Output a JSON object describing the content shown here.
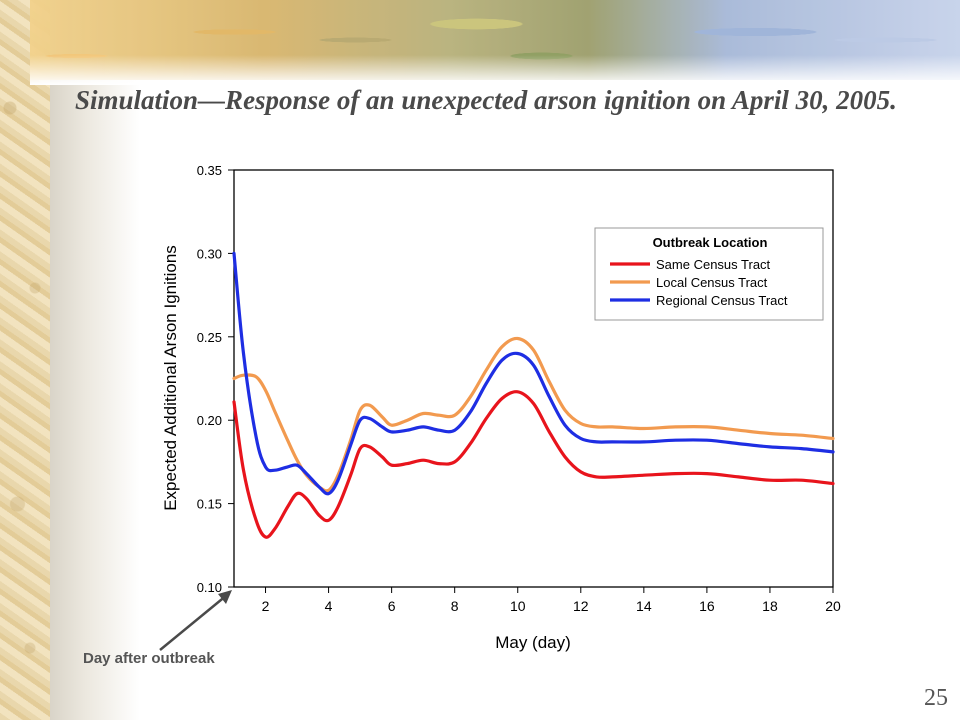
{
  "slide": {
    "title": "Simulation—Response of an unexpected arson ignition on April 30, 2005.",
    "annotation": "Day after outbreak",
    "page_number": "25"
  },
  "chart_data": {
    "type": "line",
    "title": "",
    "xlabel": "May (day)",
    "ylabel": "Expected Additional Arson Ignitions",
    "xlim": [
      1,
      20
    ],
    "ylim": [
      0.1,
      0.35
    ],
    "xticks": [
      2,
      4,
      6,
      8,
      10,
      12,
      14,
      16,
      18,
      20
    ],
    "yticks": [
      0.1,
      0.15,
      0.2,
      0.25,
      0.3,
      0.35
    ],
    "ytick_labels": [
      "0.10",
      "0.15",
      "0.20",
      "0.25",
      "0.30",
      "0.35"
    ],
    "grid": false,
    "legend": {
      "title": "Outbreak Location",
      "position": "top-right"
    },
    "series": [
      {
        "name": "Same Census Tract",
        "color": "#e8141c",
        "x": [
          1,
          1.3,
          1.7,
          2,
          2.3,
          2.7,
          3,
          3.3,
          3.7,
          4,
          4.3,
          4.7,
          5,
          5.3,
          5.7,
          6,
          6.5,
          7,
          7.5,
          8,
          8.5,
          9,
          9.5,
          10,
          10.5,
          11,
          11.5,
          12,
          12.5,
          13,
          14,
          15,
          16,
          17,
          18,
          19,
          20
        ],
        "y": [
          0.211,
          0.17,
          0.14,
          0.13,
          0.135,
          0.148,
          0.156,
          0.153,
          0.143,
          0.14,
          0.148,
          0.167,
          0.183,
          0.184,
          0.178,
          0.173,
          0.174,
          0.176,
          0.174,
          0.175,
          0.186,
          0.201,
          0.213,
          0.217,
          0.21,
          0.193,
          0.178,
          0.169,
          0.166,
          0.166,
          0.167,
          0.168,
          0.168,
          0.166,
          0.164,
          0.164,
          0.162
        ]
      },
      {
        "name": "Local Census Tract",
        "color": "#f29a4f",
        "x": [
          1,
          1.3,
          1.7,
          2,
          2.3,
          2.7,
          3,
          3.3,
          3.7,
          4,
          4.3,
          4.7,
          5,
          5.3,
          5.7,
          6,
          6.5,
          7,
          7.5,
          8,
          8.5,
          9,
          9.5,
          10,
          10.5,
          11,
          11.5,
          12,
          12.5,
          13,
          14,
          15,
          16,
          17,
          18,
          19,
          20
        ],
        "y": [
          0.225,
          0.227,
          0.226,
          0.218,
          0.205,
          0.188,
          0.176,
          0.167,
          0.16,
          0.158,
          0.167,
          0.188,
          0.206,
          0.209,
          0.202,
          0.197,
          0.2,
          0.204,
          0.203,
          0.203,
          0.214,
          0.23,
          0.244,
          0.249,
          0.242,
          0.223,
          0.206,
          0.198,
          0.196,
          0.196,
          0.195,
          0.196,
          0.196,
          0.194,
          0.192,
          0.191,
          0.189
        ]
      },
      {
        "name": "Regional Census Tract",
        "color": "#1e2ee3",
        "x": [
          1,
          1.3,
          1.7,
          2,
          2.3,
          2.7,
          3,
          3.3,
          3.7,
          4,
          4.3,
          4.7,
          5,
          5.3,
          5.7,
          6,
          6.5,
          7,
          7.5,
          8,
          8.5,
          9,
          9.5,
          10,
          10.5,
          11,
          11.5,
          12,
          12.5,
          13,
          14,
          15,
          16,
          17,
          18,
          19,
          20
        ],
        "y": [
          0.3,
          0.24,
          0.19,
          0.172,
          0.17,
          0.172,
          0.173,
          0.168,
          0.16,
          0.156,
          0.164,
          0.185,
          0.2,
          0.201,
          0.196,
          0.193,
          0.194,
          0.196,
          0.194,
          0.194,
          0.205,
          0.222,
          0.236,
          0.24,
          0.233,
          0.214,
          0.197,
          0.189,
          0.187,
          0.187,
          0.187,
          0.188,
          0.188,
          0.186,
          0.184,
          0.183,
          0.181
        ]
      }
    ]
  }
}
